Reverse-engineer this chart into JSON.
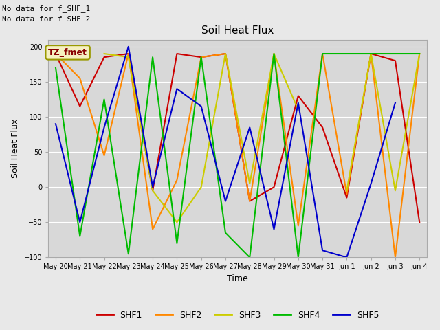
{
  "title": "Soil Heat Flux",
  "xlabel": "Time",
  "ylabel": "Soil Heat Flux",
  "ylim": [
    -100,
    210
  ],
  "yticks": [
    -100,
    -50,
    0,
    50,
    100,
    150,
    200
  ],
  "background_color": "#e8e8e8",
  "plot_bg_color": "#d8d8d8",
  "text_no_data": [
    "No data for f_SHF_1",
    "No data for f_SHF_2"
  ],
  "legend_box_label": "TZ_fmet",
  "legend_box_color": "#f5f0c0",
  "legend_box_border": "#999900",
  "series_colors": {
    "SHF1": "#cc0000",
    "SHF2": "#ff8800",
    "SHF3": "#cccc00",
    "SHF4": "#00bb00",
    "SHF5": "#0000cc"
  },
  "x_labels": [
    "May 20",
    "May 21",
    "May 22",
    "May 23",
    "May 24",
    "May 25",
    "May 26",
    "May 27",
    "May 28",
    "May 29",
    "May 30",
    "May 31",
    "Jun 1",
    "Jun 2",
    "Jun 3",
    "Jun 4"
  ],
  "SHF1": [
    190,
    115,
    185,
    190,
    -5,
    190,
    185,
    190,
    -20,
    0,
    130,
    85,
    -15,
    190,
    180,
    -50
  ],
  "SHF2": [
    190,
    155,
    45,
    190,
    -60,
    10,
    185,
    190,
    -20,
    190,
    -55,
    190,
    -10,
    190,
    -100,
    190
  ],
  "SHF3": [
    null,
    null,
    190,
    185,
    -5,
    -50,
    0,
    190,
    5,
    190,
    110,
    null,
    -5,
    190,
    -5,
    190
  ],
  "SHF4": [
    170,
    -70,
    125,
    -95,
    185,
    -80,
    185,
    -65,
    -100,
    190,
    -100,
    190,
    190,
    190,
    190,
    190
  ],
  "SHF5": [
    90,
    -50,
    85,
    200,
    0,
    140,
    115,
    -20,
    85,
    -60,
    120,
    -90,
    -100,
    5,
    120,
    null
  ],
  "figsize": [
    6.4,
    4.8
  ],
  "dpi": 100
}
